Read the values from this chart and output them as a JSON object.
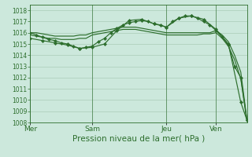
{
  "bg_color": "#cce8dc",
  "grid_color": "#aaccb8",
  "line_color": "#2d6e2d",
  "xlabel": "Pression niveau de la mer( hPa )",
  "xlabel_fontsize": 7.5,
  "ylim": [
    1008,
    1018.5
  ],
  "yticks": [
    1008,
    1009,
    1010,
    1011,
    1012,
    1013,
    1014,
    1015,
    1016,
    1017,
    1018
  ],
  "xtick_labels": [
    "Mer",
    "Sam",
    "Jeu",
    "Ven"
  ],
  "xtick_positions": [
    0,
    10,
    22,
    30
  ],
  "vline_positions": [
    0,
    10,
    22,
    30
  ],
  "xlim": [
    0,
    35
  ],
  "num_points": 36,
  "series1_x": [
    0,
    1,
    2,
    3,
    4,
    5,
    6,
    7,
    8,
    9,
    10,
    11,
    12,
    13,
    14,
    15,
    16,
    17,
    18,
    19,
    20,
    21,
    22,
    23,
    24,
    25,
    26,
    27,
    28,
    29,
    30,
    31,
    32,
    33,
    34,
    35
  ],
  "series1": [
    1016.0,
    1016.0,
    1015.9,
    1015.8,
    1015.7,
    1015.7,
    1015.7,
    1015.7,
    1015.8,
    1015.8,
    1016.0,
    1016.1,
    1016.2,
    1016.3,
    1016.4,
    1016.5,
    1016.5,
    1016.5,
    1016.4,
    1016.3,
    1016.2,
    1016.1,
    1016.0,
    1016.0,
    1016.0,
    1016.0,
    1016.0,
    1016.0,
    1016.0,
    1016.0,
    1016.2,
    1015.8,
    1015.2,
    1014.0,
    1012.5,
    1008.2
  ],
  "series2_x": [
    0,
    1,
    2,
    3,
    4,
    5,
    6,
    7,
    8,
    9,
    10,
    11,
    12,
    13,
    14,
    15,
    16,
    17,
    18,
    19,
    20,
    21,
    22,
    23,
    24,
    25,
    26,
    27,
    28,
    29,
    30,
    31,
    32,
    33,
    34,
    35
  ],
  "series2": [
    1015.8,
    1015.7,
    1015.6,
    1015.5,
    1015.5,
    1015.4,
    1015.4,
    1015.4,
    1015.5,
    1015.5,
    1015.8,
    1015.9,
    1016.0,
    1016.1,
    1016.2,
    1016.3,
    1016.3,
    1016.3,
    1016.2,
    1016.1,
    1016.0,
    1015.9,
    1015.8,
    1015.8,
    1015.8,
    1015.8,
    1015.8,
    1015.8,
    1015.9,
    1015.9,
    1016.0,
    1015.5,
    1014.8,
    1013.6,
    1011.9,
    1008.1
  ],
  "series3_x": [
    0,
    1,
    2,
    3,
    4,
    5,
    6,
    7,
    8,
    9,
    10,
    11,
    12,
    13,
    14,
    15,
    16,
    17,
    18,
    19,
    20,
    21,
    22,
    23,
    24,
    25,
    26,
    27,
    28,
    29,
    30,
    31,
    32,
    33,
    34,
    35
  ],
  "series3": [
    1016.0,
    1015.8,
    1015.6,
    1015.4,
    1015.3,
    1015.1,
    1015.0,
    1014.8,
    1014.6,
    1014.7,
    1014.8,
    1015.2,
    1015.5,
    1016.0,
    1016.4,
    1016.7,
    1016.9,
    1017.0,
    1017.1,
    1017.0,
    1016.8,
    1016.7,
    1016.5,
    1017.0,
    1017.3,
    1017.5,
    1017.5,
    1017.3,
    1017.0,
    1016.7,
    1016.2,
    1015.6,
    1014.9,
    1013.0,
    1012.0,
    1008.2
  ],
  "series4_x": [
    0,
    2,
    4,
    6,
    8,
    10,
    12,
    14,
    16,
    18,
    20,
    22,
    24,
    26,
    28,
    30,
    32,
    34,
    35
  ],
  "series4": [
    1015.5,
    1015.3,
    1015.1,
    1014.9,
    1014.6,
    1014.7,
    1015.0,
    1016.2,
    1017.1,
    1017.2,
    1016.8,
    1016.5,
    1017.3,
    1017.5,
    1017.2,
    1016.3,
    1015.0,
    1009.8,
    1008.2
  ]
}
